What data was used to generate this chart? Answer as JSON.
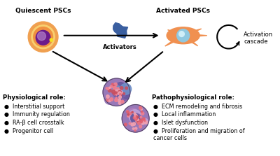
{
  "bg_color": "#ffffff",
  "quiescent_label": "Quiescent PSCs",
  "activated_label": "Activated PSCs",
  "activators_label": "Activators",
  "cascade_label": "Activation\ncascade",
  "physio_title": "Physiological role:",
  "physio_items": [
    "Interstitial support",
    "Immunity regulation",
    "RA-β cell crosstalk",
    "Progenitor cell"
  ],
  "patho_title": "Pathophysiological role:",
  "patho_items": [
    "ECM remodeling and fibrosis",
    "Local inflammation",
    "Islet dysfunction",
    "Proliferation and migration of\ncancer cells"
  ],
  "text_color": "#000000",
  "quiescent_outer": "#f5a050",
  "quiescent_mid": "#f5d090",
  "quiescent_inner": "#f08030",
  "quiescent_nucleus": "#6b1a8b",
  "quiescent_nucleus_spot": "#c8a0d8",
  "quiescent_yellow_dot": "#f5e040",
  "activated_body": "#f09050",
  "activated_nucleus": "#90c8e0",
  "activator_color": "#4060a0",
  "label_fontsize": 6.5,
  "item_fontsize": 6.0
}
